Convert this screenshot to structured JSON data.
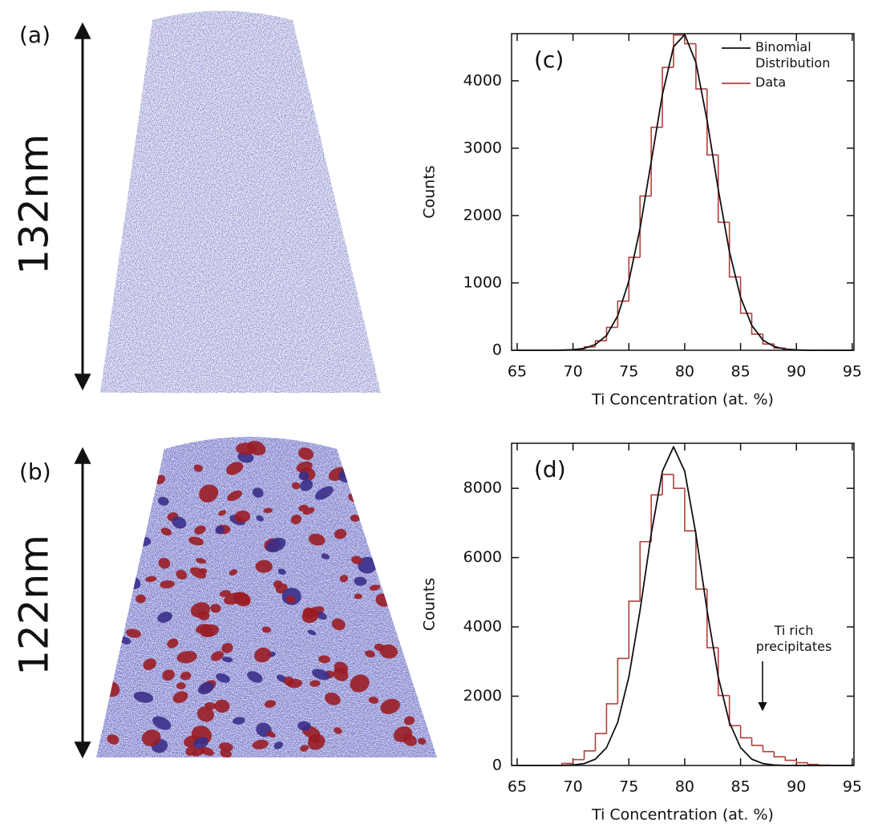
{
  "panels": [
    {
      "label": "(a)",
      "scale": "132nm"
    },
    {
      "label": "(b)",
      "scale": "122nm"
    }
  ],
  "chart_data": [
    {
      "type": "histogram",
      "panel_label": "(c)",
      "xlabel": "Ti Concentration (at. %)",
      "ylabel": "Counts",
      "xlim": [
        64.5,
        95.15
      ],
      "ylim": [
        0,
        4700
      ],
      "xticks": [
        65,
        70,
        75,
        80,
        85,
        90,
        95
      ],
      "yticks": [
        0,
        1000,
        2000,
        3000,
        4000
      ],
      "bins": [
        65,
        66,
        67,
        68,
        69,
        70,
        71,
        72,
        73,
        74,
        75,
        76,
        77,
        78,
        79,
        80,
        81,
        82,
        83,
        84,
        85,
        86,
        87,
        88,
        89,
        90,
        91,
        92,
        93,
        94,
        95
      ],
      "counts": [
        0,
        0,
        0,
        0,
        4,
        15,
        50,
        140,
        340,
        730,
        1380,
        2290,
        3310,
        4200,
        4680,
        4550,
        3880,
        2900,
        1900,
        1090,
        550,
        240,
        93,
        32,
        10,
        3,
        0,
        0,
        0,
        0
      ],
      "name": "Data",
      "color": "#b0413e",
      "line": {
        "name": "Binomial Distribution",
        "color": "#111111",
        "x": [
          65,
          66,
          67,
          68,
          69,
          70,
          71,
          72,
          73,
          74,
          75,
          76,
          77,
          78,
          79,
          80,
          81,
          82,
          83,
          84,
          85,
          86,
          87,
          88,
          89,
          90,
          91,
          92,
          93,
          94,
          95
        ],
        "values": [
          0,
          0,
          0,
          0,
          2,
          8,
          28,
          85,
          220,
          510,
          1028,
          1810,
          2800,
          3795,
          4505,
          4687,
          4273,
          3413,
          2388,
          1465,
          786,
          370,
          152,
          55,
          17,
          5,
          1,
          0,
          0,
          0,
          0
        ]
      },
      "legend": "upper right"
    },
    {
      "type": "histogram",
      "panel_label": "(d)",
      "xlabel": "Ti Concentration (at. %)",
      "ylabel": "Counts",
      "xlim": [
        64.5,
        95.15
      ],
      "ylim": [
        0,
        9300
      ],
      "xticks": [
        65,
        70,
        75,
        80,
        85,
        90,
        95
      ],
      "yticks": [
        0,
        2000,
        4000,
        6000,
        8000
      ],
      "bins": [
        65,
        66,
        67,
        68,
        69,
        70,
        71,
        72,
        73,
        74,
        75,
        76,
        77,
        78,
        79,
        80,
        81,
        82,
        83,
        84,
        85,
        86,
        87,
        88,
        89,
        90,
        91,
        92,
        93,
        94,
        95
      ],
      "counts": [
        0,
        0,
        0,
        5,
        60,
        170,
        420,
        920,
        1780,
        3090,
        4740,
        6460,
        7810,
        8400,
        8000,
        6770,
        5090,
        3400,
        2020,
        1150,
        800,
        580,
        400,
        250,
        150,
        80,
        30,
        10,
        0,
        0
      ],
      "color": "#b0413e",
      "line": {
        "color": "#111111",
        "x": [
          65,
          66,
          67,
          68,
          69,
          70,
          71,
          72,
          73,
          74,
          75,
          76,
          77,
          78,
          79,
          80,
          81,
          82,
          83,
          84,
          85,
          86,
          87,
          88,
          89,
          90,
          91,
          92,
          93,
          94,
          95
        ],
        "values": [
          0,
          0,
          0,
          0,
          3,
          14,
          55,
          182,
          516,
          1245,
          2557,
          4477,
          6682,
          8491,
          9200,
          8491,
          6682,
          4477,
          2557,
          1245,
          516,
          182,
          55,
          14,
          3,
          0,
          0,
          0,
          0,
          0,
          0
        ]
      },
      "annotation": "Ti rich precipitates"
    }
  ]
}
